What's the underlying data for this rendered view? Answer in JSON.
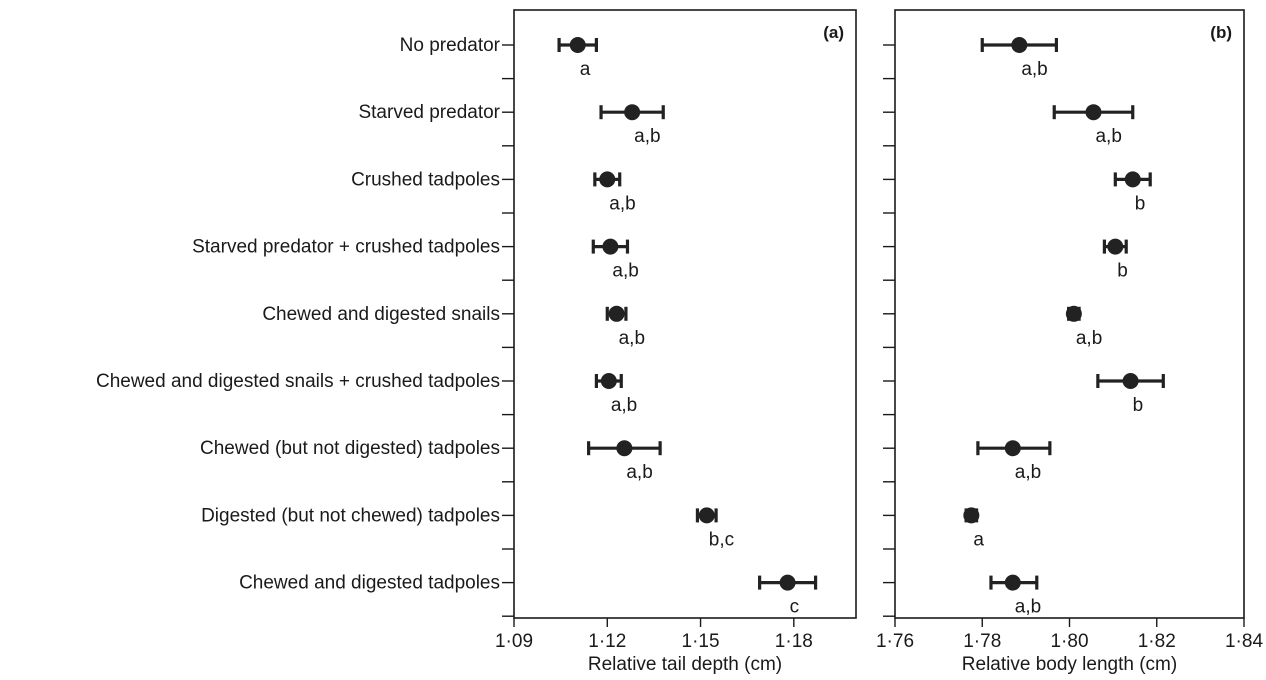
{
  "chart_data": {
    "type": "scatter",
    "style": "dot-with-error-bars",
    "categories": [
      "No predator",
      "Starved predator",
      "Crushed tadpoles",
      "Starved predator + crushed tadpoles",
      "Chewed and digested snails",
      "Chewed and digested snails + crushed tadpoles",
      "Chewed (but not digested) tadpoles",
      "Digested (but not chewed) tadpoles",
      "Chewed and digested tadpoles"
    ],
    "panels": [
      {
        "label": "(a)",
        "xlabel": "Relative tail depth (cm)",
        "xlim": [
          1.09,
          1.2
        ],
        "xticks": [
          1.09,
          1.12,
          1.15,
          1.18
        ],
        "xtick_labels": [
          "1·09",
          "1·12",
          "1·15",
          "1·18"
        ],
        "points": [
          {
            "mean": 1.1105,
            "lower": 1.1045,
            "upper": 1.1165,
            "sig": "a"
          },
          {
            "mean": 1.128,
            "lower": 1.118,
            "upper": 1.138,
            "sig": "a,b"
          },
          {
            "mean": 1.12,
            "lower": 1.116,
            "upper": 1.124,
            "sig": "a,b"
          },
          {
            "mean": 1.121,
            "lower": 1.1155,
            "upper": 1.1265,
            "sig": "a,b"
          },
          {
            "mean": 1.123,
            "lower": 1.12,
            "upper": 1.126,
            "sig": "a,b"
          },
          {
            "mean": 1.1205,
            "lower": 1.1165,
            "upper": 1.1245,
            "sig": "a,b"
          },
          {
            "mean": 1.1255,
            "lower": 1.114,
            "upper": 1.137,
            "sig": "a,b"
          },
          {
            "mean": 1.152,
            "lower": 1.149,
            "upper": 1.155,
            "sig": "b,c"
          },
          {
            "mean": 1.178,
            "lower": 1.169,
            "upper": 1.187,
            "sig": "c"
          }
        ]
      },
      {
        "label": "(b)",
        "xlabel": "Relative body length (cm)",
        "xlim": [
          1.76,
          1.84
        ],
        "xticks": [
          1.76,
          1.78,
          1.8,
          1.82,
          1.84
        ],
        "xtick_labels": [
          "1·76",
          "1·78",
          "1·80",
          "1·82",
          "1·84"
        ],
        "points": [
          {
            "mean": 1.7885,
            "lower": 1.78,
            "upper": 1.797,
            "sig": "a,b"
          },
          {
            "mean": 1.8055,
            "lower": 1.7965,
            "upper": 1.8145,
            "sig": "a,b"
          },
          {
            "mean": 1.8145,
            "lower": 1.8105,
            "upper": 1.8185,
            "sig": "b"
          },
          {
            "mean": 1.8105,
            "lower": 1.808,
            "upper": 1.813,
            "sig": "b"
          },
          {
            "mean": 1.801,
            "lower": 1.7998,
            "upper": 1.8022,
            "sig": "a,b"
          },
          {
            "mean": 1.814,
            "lower": 1.8065,
            "upper": 1.8215,
            "sig": "b"
          },
          {
            "mean": 1.787,
            "lower": 1.779,
            "upper": 1.7955,
            "sig": "a,b"
          },
          {
            "mean": 1.7775,
            "lower": 1.7763,
            "upper": 1.7787,
            "sig": "a"
          },
          {
            "mean": 1.787,
            "lower": 1.782,
            "upper": 1.7925,
            "sig": "a,b"
          }
        ]
      }
    ],
    "grid": false,
    "legend": "none"
  }
}
